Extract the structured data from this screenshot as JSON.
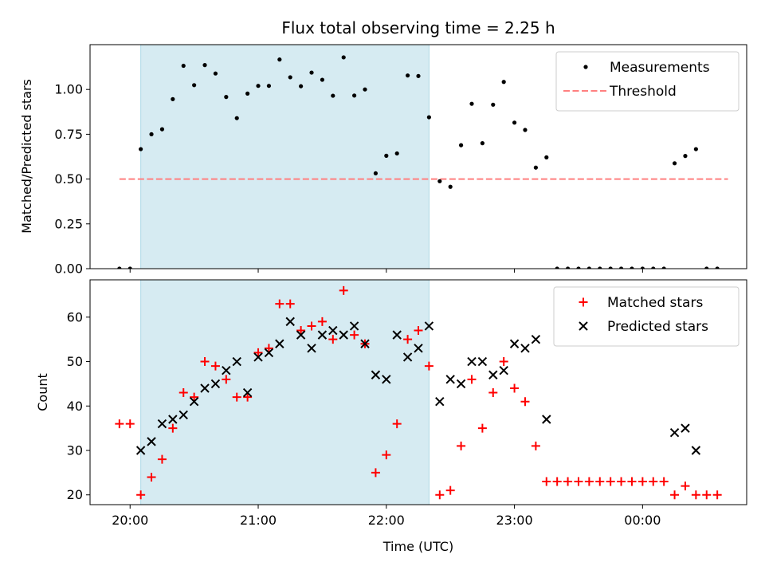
{
  "chart_data": {
    "type": "scatter",
    "title": "Flux total observing time = 2.25 h",
    "xlabel": "Time (UTC)",
    "x_unit": "hours since 20:00 UTC",
    "xlim": [
      -0.3125,
      4.8125
    ],
    "xticks": [
      {
        "value": 0,
        "label": "20:00"
      },
      {
        "value": 1,
        "label": "21:00"
      },
      {
        "value": 2,
        "label": "22:00"
      },
      {
        "value": 3,
        "label": "23:00"
      },
      {
        "value": 4,
        "label": "00:00"
      }
    ],
    "observing_span": [
      0.08333,
      2.33333
    ],
    "panels": [
      {
        "ylabel": "Matched/Predicted stars",
        "ylim": [
          0,
          1.25
        ],
        "yticks": [
          0,
          0.25,
          0.5,
          0.75,
          1.0
        ],
        "ytick_labels": [
          "0.00",
          "0.25",
          "0.50",
          "0.75",
          "1.00"
        ],
        "legend_position": "top-right",
        "threshold": {
          "name": "Threshold",
          "value": 0.5,
          "x_range": [
            -0.0833,
            4.6667
          ],
          "color": "#ff8080"
        },
        "series": [
          {
            "name": "Measurements",
            "marker": "dot",
            "color": "#000000",
            "points": [
              [
                -0.0833,
                0
              ],
              [
                0,
                0
              ],
              [
                0.0833,
                0.667
              ],
              [
                0.1667,
                0.75
              ],
              [
                0.25,
                0.778
              ],
              [
                0.3333,
                0.946
              ],
              [
                0.4167,
                1.132
              ],
              [
                0.5,
                1.024
              ],
              [
                0.5833,
                1.136
              ],
              [
                0.6667,
                1.089
              ],
              [
                0.75,
                0.958
              ],
              [
                0.8333,
                0.84
              ],
              [
                0.9167,
                0.977
              ],
              [
                1.0,
                1.02
              ],
              [
                1.0833,
                1.02
              ],
              [
                1.1667,
                1.167
              ],
              [
                1.25,
                1.068
              ],
              [
                1.3333,
                1.018
              ],
              [
                1.4167,
                1.094
              ],
              [
                1.5,
                1.054
              ],
              [
                1.5833,
                0.965
              ],
              [
                1.6667,
                1.179
              ],
              [
                1.75,
                0.966
              ],
              [
                1.8333,
                1.0
              ],
              [
                1.9167,
                0.532
              ],
              [
                2.0,
                0.63
              ],
              [
                2.0833,
                0.643
              ],
              [
                2.1667,
                1.078
              ],
              [
                2.25,
                1.075
              ],
              [
                2.3333,
                0.845
              ],
              [
                2.4167,
                0.488
              ],
              [
                2.5,
                0.457
              ],
              [
                2.5833,
                0.689
              ],
              [
                2.6667,
                0.92
              ],
              [
                2.75,
                0.7
              ],
              [
                2.8333,
                0.915
              ],
              [
                2.9167,
                1.042
              ],
              [
                3.0,
                0.815
              ],
              [
                3.0833,
                0.774
              ],
              [
                3.1667,
                0.564
              ],
              [
                3.25,
                0.621
              ],
              [
                3.3333,
                0
              ],
              [
                3.4167,
                0
              ],
              [
                3.5,
                0
              ],
              [
                3.5833,
                0
              ],
              [
                3.6667,
                0
              ],
              [
                3.75,
                0
              ],
              [
                3.8333,
                0
              ],
              [
                3.9167,
                0
              ],
              [
                4.0,
                0
              ],
              [
                4.0833,
                0
              ],
              [
                4.1667,
                0
              ],
              [
                4.25,
                0.588
              ],
              [
                4.3333,
                0.629
              ],
              [
                4.4167,
                0.667
              ],
              [
                4.5,
                0
              ],
              [
                4.5833,
                0
              ]
            ]
          }
        ]
      },
      {
        "ylabel": "Count",
        "ylim": [
          17.8,
          68.4
        ],
        "yticks": [
          20,
          30,
          40,
          50,
          60
        ],
        "ytick_labels": [
          "20",
          "30",
          "40",
          "50",
          "60"
        ],
        "legend_position": "top-right",
        "series": [
          {
            "name": "Matched stars",
            "marker": "plus",
            "color": "#ff0000",
            "points": [
              [
                -0.0833,
                36
              ],
              [
                0,
                36
              ],
              [
                0.0833,
                20
              ],
              [
                0.1667,
                24
              ],
              [
                0.25,
                28
              ],
              [
                0.3333,
                35
              ],
              [
                0.4167,
                43
              ],
              [
                0.5,
                42
              ],
              [
                0.5833,
                50
              ],
              [
                0.6667,
                49
              ],
              [
                0.75,
                46
              ],
              [
                0.8333,
                42
              ],
              [
                0.9167,
                42
              ],
              [
                1.0,
                52
              ],
              [
                1.0833,
                53
              ],
              [
                1.1667,
                63
              ],
              [
                1.25,
                63
              ],
              [
                1.3333,
                57
              ],
              [
                1.4167,
                58
              ],
              [
                1.5,
                59
              ],
              [
                1.5833,
                55
              ],
              [
                1.6667,
                66
              ],
              [
                1.75,
                56
              ],
              [
                1.8333,
                54
              ],
              [
                1.9167,
                25
              ],
              [
                2.0,
                29
              ],
              [
                2.0833,
                36
              ],
              [
                2.1667,
                55
              ],
              [
                2.25,
                57
              ],
              [
                2.3333,
                49
              ],
              [
                2.4167,
                20
              ],
              [
                2.5,
                21
              ],
              [
                2.5833,
                31
              ],
              [
                2.6667,
                46
              ],
              [
                2.75,
                35
              ],
              [
                2.8333,
                43
              ],
              [
                2.9167,
                50
              ],
              [
                3.0,
                44
              ],
              [
                3.0833,
                41
              ],
              [
                3.1667,
                31
              ],
              [
                3.25,
                23
              ],
              [
                3.3333,
                23
              ],
              [
                3.4167,
                23
              ],
              [
                3.5,
                23
              ],
              [
                3.5833,
                23
              ],
              [
                3.6667,
                23
              ],
              [
                3.75,
                23
              ],
              [
                3.8333,
                23
              ],
              [
                3.9167,
                23
              ],
              [
                4.0,
                23
              ],
              [
                4.0833,
                23
              ],
              [
                4.1667,
                23
              ],
              [
                4.25,
                20
              ],
              [
                4.3333,
                22
              ],
              [
                4.4167,
                20
              ],
              [
                4.5,
                20
              ],
              [
                4.5833,
                20
              ]
            ]
          },
          {
            "name": "Predicted stars",
            "marker": "x",
            "color": "#000000",
            "points": [
              [
                0.0833,
                30
              ],
              [
                0.1667,
                32
              ],
              [
                0.25,
                36
              ],
              [
                0.3333,
                37
              ],
              [
                0.4167,
                38
              ],
              [
                0.5,
                41
              ],
              [
                0.5833,
                44
              ],
              [
                0.6667,
                45
              ],
              [
                0.75,
                48
              ],
              [
                0.8333,
                50
              ],
              [
                0.9167,
                43
              ],
              [
                1.0,
                51
              ],
              [
                1.0833,
                52
              ],
              [
                1.1667,
                54
              ],
              [
                1.25,
                59
              ],
              [
                1.3333,
                56
              ],
              [
                1.4167,
                53
              ],
              [
                1.5,
                56
              ],
              [
                1.5833,
                57
              ],
              [
                1.6667,
                56
              ],
              [
                1.75,
                58
              ],
              [
                1.8333,
                54
              ],
              [
                1.9167,
                47
              ],
              [
                2.0,
                46
              ],
              [
                2.0833,
                56
              ],
              [
                2.1667,
                51
              ],
              [
                2.25,
                53
              ],
              [
                2.3333,
                58
              ],
              [
                2.4167,
                41
              ],
              [
                2.5,
                46
              ],
              [
                2.5833,
                45
              ],
              [
                2.6667,
                50
              ],
              [
                2.75,
                50
              ],
              [
                2.8333,
                47
              ],
              [
                2.9167,
                48
              ],
              [
                3.0,
                54
              ],
              [
                3.0833,
                53
              ],
              [
                3.1667,
                55
              ],
              [
                3.25,
                37
              ],
              [
                4.25,
                34
              ],
              [
                4.3333,
                35
              ],
              [
                4.4167,
                30
              ]
            ]
          }
        ]
      }
    ]
  }
}
